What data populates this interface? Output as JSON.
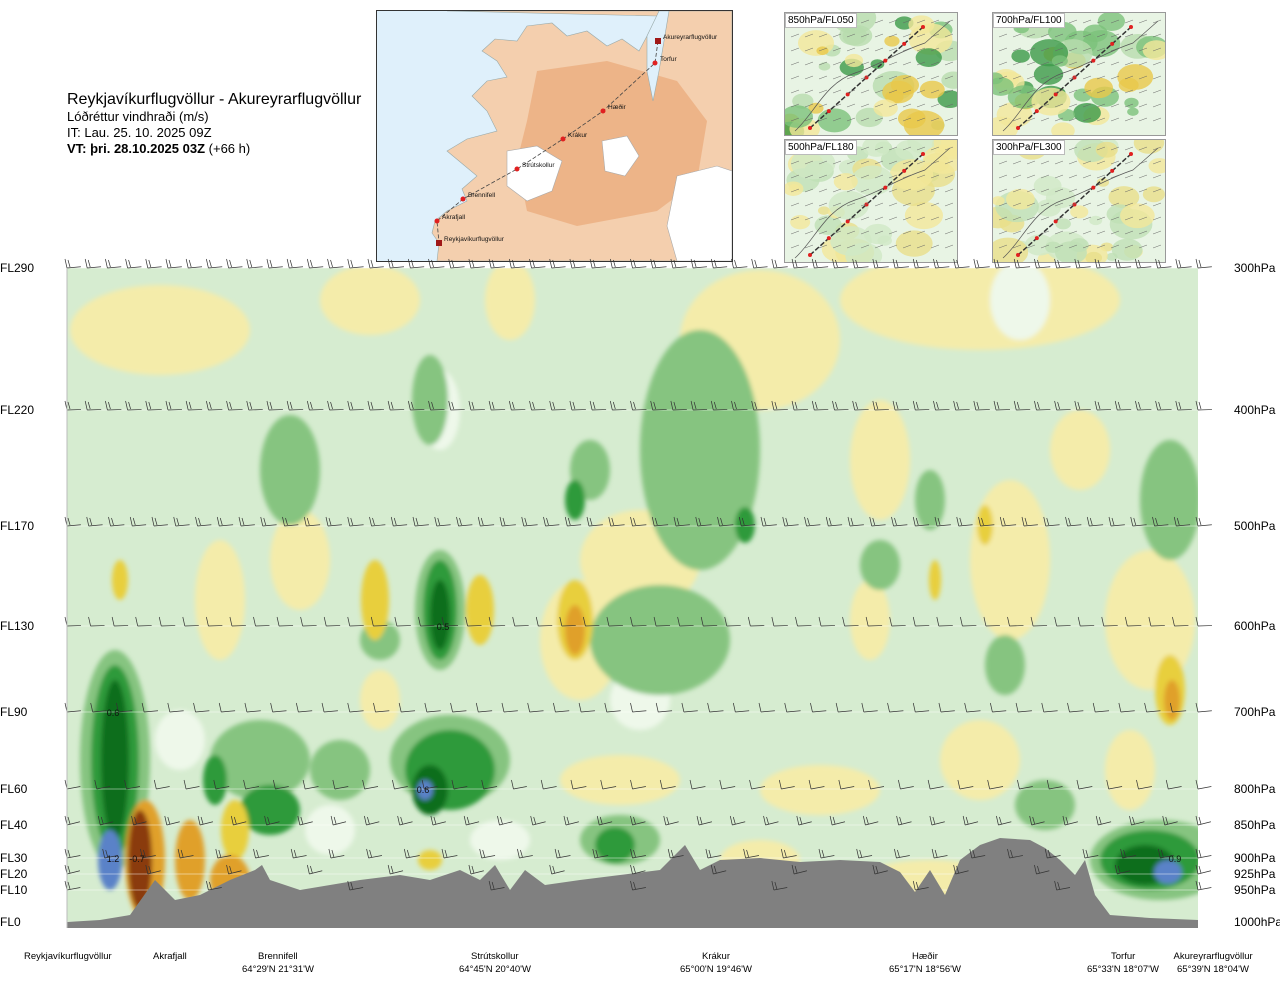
{
  "header": {
    "title": "Reykjavíkurflugvöllur - Akureyrarflugvöllur",
    "subtitle": "Lóðréttur vindhraði (m/s)",
    "issue_time": "IT: Lau. 25. 10. 2025 09Z",
    "valid_label": "VT: þri. 28.10.2025 03Z",
    "valid_offset": "(+66 h)"
  },
  "route_map": {
    "waypoints": [
      {
        "name": "Akureyrarflugvöllur"
      },
      {
        "name": "Torfur"
      },
      {
        "name": "Hæðir"
      },
      {
        "name": "Krákur"
      },
      {
        "name": "Strútskollur"
      },
      {
        "name": "Brennifell"
      },
      {
        "name": "Akrafjall"
      },
      {
        "name": "Reykjavíkurflugvöllur"
      }
    ],
    "route_color": "#444444",
    "waypoint_color": "#e02020"
  },
  "insets": [
    {
      "label": "850hPa/FL050"
    },
    {
      "label": "700hPa/FL100"
    },
    {
      "label": "500hPa/FL180"
    },
    {
      "label": "300hPa/FL300"
    }
  ],
  "chart_data": {
    "type": "heatmap",
    "title": "Reykjavíkurflugvöllur - Akureyrarflugvöllur",
    "quantity": "Lóðréttur vindhraði (m/s)",
    "y_left_labels": [
      "FL290",
      "FL220",
      "FL170",
      "FL130",
      "FL90",
      "FL60",
      "FL40",
      "FL30",
      "FL20",
      "FL10",
      "FL0"
    ],
    "y_right_labels": [
      "300hPa",
      "400hPa",
      "500hPa",
      "600hPa",
      "700hPa",
      "800hPa",
      "850hPa",
      "900hPa",
      "925hPa",
      "950hPa",
      "1000hPa"
    ],
    "pressure_levels": [
      300,
      400,
      500,
      600,
      700,
      800,
      850,
      900,
      925,
      950,
      1000
    ],
    "x_locations": [
      {
        "name": "Reykjavíkurflugvöllur",
        "coord": ""
      },
      {
        "name": "Akrafjall",
        "coord": ""
      },
      {
        "name": "Brennifell",
        "coord": "64°29'N 21°31'W"
      },
      {
        "name": "Strútskollur",
        "coord": "64°45'N 20°40'W"
      },
      {
        "name": "Krákur",
        "coord": "65°00'N 19°46'W"
      },
      {
        "name": "Hæðir",
        "coord": "65°17'N 18°56'W"
      },
      {
        "name": "Torfur",
        "coord": "65°33'N 18°07'W"
      },
      {
        "name": "Akureyrarflugvöllur",
        "coord": "65°39'N 18°04'W"
      }
    ],
    "value_labels": [
      {
        "text": "0.6",
        "location": "Reykjavíkurflugvöllur",
        "level": "FL90"
      },
      {
        "text": "1.2",
        "location": "Reykjavíkurflugvöllur",
        "level": "FL30"
      },
      {
        "text": "-0.7",
        "location": "Akrafjall",
        "level": "FL30"
      },
      {
        "text": "0.5",
        "location": "Strútskollur",
        "level": "FL130"
      },
      {
        "text": "0.6",
        "location": "Strútskollur",
        "level": "FL60"
      },
      {
        "text": "0.9",
        "location": "Akureyrarflugvöllur",
        "level": "FL30"
      }
    ],
    "colors": {
      "strong_up": "#5a82c8",
      "up_3": "#0f6e1e",
      "up_2": "#2e9a3a",
      "up_1": "#86c480",
      "weak_up": "#c9e6c3",
      "neutral": "#eef8ea",
      "weak_down": "#f4ecaa",
      "down_1": "#e8cf3c",
      "down_2": "#e0a02a",
      "strong_down": "#8a3a0c",
      "terrain": "#808080"
    },
    "grid": true
  }
}
